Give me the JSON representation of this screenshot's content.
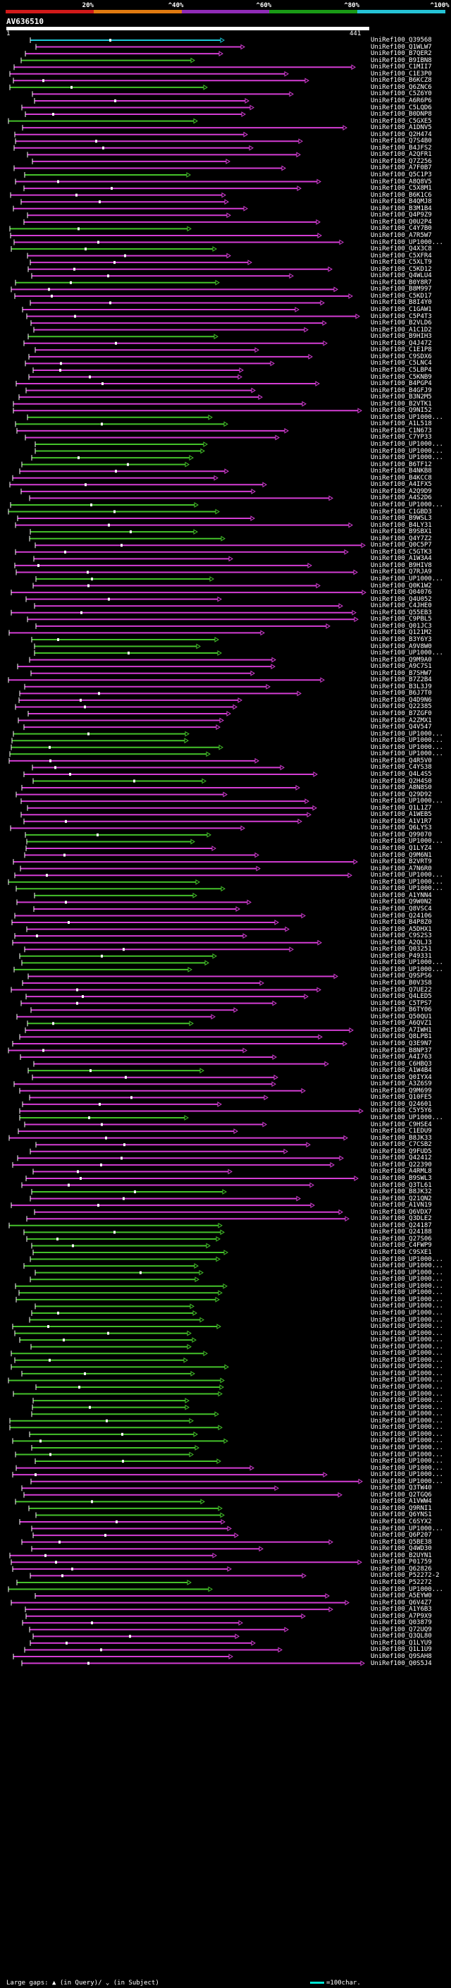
{
  "scale": {
    "labels": [
      "20%",
      "^40%",
      "^60%",
      "^80%",
      "^100%"
    ],
    "colors": [
      "#d11a1a",
      "#e07a10",
      "#8f2bb6",
      "#1a9a16",
      "#25c3d6"
    ]
  },
  "query": {
    "title": "AV636510",
    "start": "1",
    "end": "441"
  },
  "hit_colors": {
    "magenta": "#d43dd4",
    "green": "#44c22a",
    "cyan": "#19c8d8"
  },
  "hits": [
    "UniRef100_Q39568",
    "UniRef100_Q1WLW7",
    "UniRef100_B7QER2",
    "UniRef100_B9IBN8",
    "UniRef100_C1MII7",
    "UniRef100_C1E3P0",
    "UniRef100_B6KCZ8",
    "UniRef100_Q6ZNC6",
    "UniRef100_C5Z6Y0",
    "UniRef100_A6R6P6",
    "UniRef100_C5LQD6",
    "UniRef100_B0DNP8",
    "UniRef100_C5GXE5",
    "UniRef100_A1DNV5",
    "UniRef100_Q2H474",
    "UniRef100_Q7S4B0",
    "UniRef100_B4JFS2",
    "UniRef100_A2QFR1",
    "UniRef100_Q7Z256",
    "UniRef100_A7F0B7",
    "UniRef100_Q5C1P3",
    "UniRef100_A8Q8V5",
    "UniRef100_C5X8M1",
    "UniRef100_B6K1C6",
    "UniRef100_B4QMJ8",
    "UniRef100_B3M1B4",
    "UniRef100_Q4P9Z9",
    "UniRef100_Q0U2P4",
    "UniRef100_C4Y7B0",
    "UniRef100_A7R5W7",
    "UniRef100_UP1000...",
    "UniRef100_Q4X3C8",
    "UniRef100_C5XFR4",
    "UniRef100_C5XLT9",
    "UniRef100_C5KD12",
    "UniRef100_Q4WLU4",
    "UniRef100_B0Y8R7",
    "UniRef100_B8M997",
    "UniRef100_C5KD17",
    "UniRef100_B8I4Y0",
    "UniRef100_C1GAW1",
    "UniRef100_C5P4T3",
    "UniRef100_B2VLD6",
    "UniRef100_A1C1D2",
    "UniRef100_B9HIH3",
    "UniRef100_Q4J472",
    "UniRef100_C1E1P8",
    "UniRef100_C9SDX6",
    "UniRef100_C5LNC4",
    "UniRef100_C5LBP4",
    "UniRef100_C5KNB9",
    "UniRef100_B4PGP4",
    "UniRef100_B4GFJ9",
    "UniRef100_B3N2M5",
    "UniRef100_B2VTK1",
    "UniRef100_Q9NI52",
    "UniRef100_UP1000...",
    "UniRef100_A1L518",
    "UniRef100_C1N673",
    "UniRef100_C7YP33",
    "UniRef100_UP1000...",
    "UniRef100_UP1000...",
    "UniRef100_UP1000...",
    "UniRef100_B6TF12",
    "UniRef100_B4NKB8",
    "UniRef100_B4KCC8",
    "UniRef100_A4IFX5",
    "UniRef100_A2Q9D9",
    "UniRef100_A4S2D6",
    "UniRef100_UP1000...",
    "UniRef100_C1GBD3",
    "UniRef100_B9WSL3",
    "UniRef100_B4LY31",
    "UniRef100_B9SBX1",
    "UniRef100_Q4Y7Z2",
    "UniRef100_Q0C5P7",
    "UniRef100_C5GTK3",
    "UniRef100_A1W3A4",
    "UniRef100_B9HIV8",
    "UniRef100_Q7RJA9",
    "UniRef100_UP1000...",
    "UniRef100_Q0K1W2",
    "UniRef100_Q04076",
    "UniRef100_Q4U052",
    "UniRef100_C4JHE0",
    "UniRef100_Q55EB3",
    "UniRef100_C9PBL5",
    "UniRef100_Q01JC3",
    "UniRef100_Q121M2",
    "UniRef100_B3Y6Y3",
    "UniRef100_A9V8W0",
    "UniRef100_UP1000...",
    "UniRef100_Q9M9A0",
    "UniRef100_A9C7S1",
    "UniRef100_B7SHW7",
    "UniRef100_B7Z2B4",
    "UniRef100_B3L3J9",
    "UniRef100_B6J7T0",
    "UniRef100_Q4D9N6",
    "UniRef100_Q22385",
    "UniRef100_B7ZGF0",
    "UniRef100_A2ZMX1",
    "UniRef100_Q4V547",
    "UniRef100_UP1000...",
    "UniRef100_UP1000...",
    "UniRef100_UP1000...",
    "UniRef100_UP1000...",
    "UniRef100_Q4R5V0",
    "UniRef100_C4YS38",
    "UniRef100_Q4L4S5",
    "UniRef100_Q2H4S0",
    "UniRef100_A8N8S0",
    "UniRef100_Q29D92",
    "UniRef100_UP1000...",
    "UniRef100_Q1L1Z7",
    "UniRef100_A1WEB5",
    "UniRef100_A1V1R7",
    "UniRef100_Q6LYS3",
    "UniRef100_Q99070",
    "UniRef100_UP1000...",
    "UniRef100_Q1LYZ4",
    "UniRef100_Q9M6N1",
    "UniRef100_B2VRT9",
    "UniRef100_A7N6R0",
    "UniRef100_UP1000...",
    "UniRef100_UP1000...",
    "UniRef100_UP1000...",
    "UniRef100_A1YNN4",
    "UniRef100_Q9W0N2",
    "UniRef100_Q8VSC4",
    "UniRef100_Q24106",
    "UniRef100_B4P8Z0",
    "UniRef100_A5DHX1",
    "UniRef100_C9S2S3",
    "UniRef100_A2QLJ3",
    "UniRef100_Q03251",
    "UniRef100_P49331",
    "UniRef100_UP1000...",
    "UniRef100_UP1000...",
    "UniRef100_Q9SPS6",
    "UniRef100_B0V3S8",
    "UniRef100_Q7UE22",
    "UniRef100_Q4LED5",
    "UniRef100_C5TPS7",
    "UniRef100_B6TY06",
    "UniRef100_Q50QU1",
    "UniRef100_A6QVZ1",
    "UniRef100_A7IWH1",
    "UniRef100_Q8LPB1",
    "UniRef100_Q3E9N7",
    "UniRef100_B8NP37",
    "UniRef100_A4I763",
    "UniRef100_C6HBQ3",
    "UniRef100_A1W4B4",
    "UniRef100_Q0IYX4",
    "UniRef100_A3Z6S9",
    "UniRef100_Q9M699",
    "UniRef100_Q10FE5",
    "UniRef100_Q24601",
    "UniRef100_C5Y5Y6",
    "UniRef100_UP1000...",
    "UniRef100_C9HSE4",
    "UniRef100_C1EDU9",
    "UniRef100_B8JK33",
    "UniRef100_C7CSB2",
    "UniRef100_Q9FUD5",
    "UniRef100_Q42412",
    "UniRef100_Q22390",
    "UniRef100_A4RML8",
    "UniRef100_B9SWL3",
    "UniRef100_Q3TL61",
    "UniRef100_B8JK32",
    "UniRef100_Q21QN2",
    "UniRef100_A1VN19",
    "UniRef100_Q6VDX7",
    "UniRef100_Q3DLE2",
    "UniRef100_Q24187",
    "UniRef100_Q24188",
    "UniRef100_Q27S06",
    "UniRef100_C4FWP9",
    "UniRef100_C9SXE1",
    "UniRef100_UP1000...",
    "UniRef100_UP1000...",
    "UniRef100_UP1000...",
    "UniRef100_UP1000...",
    "UniRef100_UP1000...",
    "UniRef100_UP1000...",
    "UniRef100_UP1000...",
    "UniRef100_UP1000...",
    "UniRef100_UP1000...",
    "UniRef100_UP1000...",
    "UniRef100_UP1000...",
    "UniRef100_UP1000...",
    "UniRef100_UP1000...",
    "UniRef100_UP1000...",
    "UniRef100_UP1000...",
    "UniRef100_UP1000...",
    "UniRef100_UP1000...",
    "UniRef100_UP1000...",
    "UniRef100_UP1000...",
    "UniRef100_UP1000...",
    "UniRef100_UP1000...",
    "UniRef100_UP1000...",
    "UniRef100_UP1000...",
    "UniRef100_UP1000...",
    "UniRef100_UP1000...",
    "UniRef100_UP1000...",
    "UniRef100_UP1000...",
    "UniRef100_UP1000...",
    "UniRef100_UP1000...",
    "UniRef100_UP1000...",
    "UniRef100_UP1000...",
    "UniRef100_UP1000...",
    "UniRef100_UP1000...",
    "UniRef100_UP1000...",
    "UniRef100_Q3TW40",
    "UniRef100_Q2TGQ6",
    "UniRef100_A1VWW4",
    "UniRef100_Q9RNI1",
    "UniRef100_Q6YNS1",
    "UniRef100_C6SYX2",
    "UniRef100_UP1000...",
    "UniRef100_Q6P207",
    "UniRef100_Q5BE38",
    "UniRef100_Q4WD30",
    "UniRef100_B2UYN1",
    "UniRef100_P01759",
    "UniRef100_Q62826",
    "UniRef100_P52272-2",
    "UniRef100_P52272",
    "UniRef100_UP1000...",
    "UniRef100_A5EYW0",
    "UniRef100_Q6V4Z7",
    "UniRef100_A1Y6B3",
    "UniRef100_A7P9X9",
    "UniRef100_Q03879",
    "UniRef100_Q72UQ9",
    "UniRef100_Q3QL80",
    "UniRef100_Q1LYU9",
    "UniRef100_Q1L1U9",
    "UniRef100_Q9SAH8",
    "UniRef100_Q0S5J4"
  ],
  "legend": {
    "large_gaps": "Large gaps:",
    "in_query": "(in Query)",
    "in_subject": "(in Subject)",
    "scale_text": "=100char."
  }
}
